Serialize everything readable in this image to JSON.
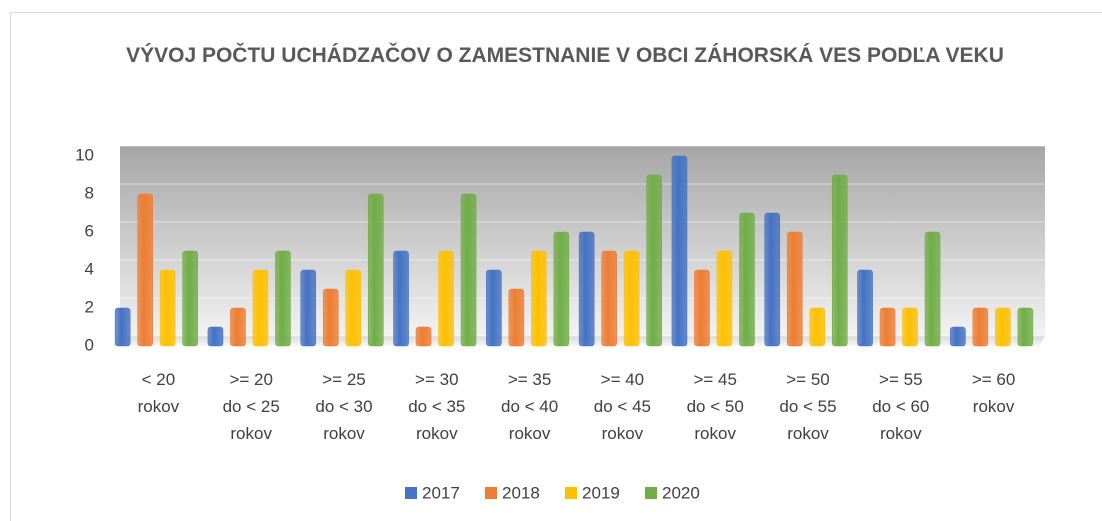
{
  "chart_data": {
    "type": "bar3d",
    "title": "VÝVOJ POČTU UCHÁDZAČOV O ZAMESTNANIE V OBCI ZÁHORSKÁ VES PODĽA VEKU",
    "categories": [
      "< 20 rokov",
      ">= 20 do < 25 rokov",
      ">= 25 do < 30 rokov",
      ">= 30 do < 35 rokov",
      ">= 35 do < 40 rokov",
      ">= 40 do < 45 rokov",
      ">= 45 do < 50 rokov",
      ">= 50 do < 55 rokov",
      ">= 55 do < 60 rokov",
      ">= 60 rokov"
    ],
    "series": [
      {
        "name": "2017",
        "color": "#4472c4",
        "values": [
          2,
          1,
          4,
          5,
          4,
          6,
          10,
          7,
          4,
          1
        ]
      },
      {
        "name": "2018",
        "color": "#ed7d31",
        "values": [
          8,
          2,
          3,
          1,
          3,
          5,
          4,
          6,
          2,
          2
        ]
      },
      {
        "name": "2019",
        "color": "#ffc000",
        "values": [
          4,
          4,
          4,
          5,
          5,
          5,
          5,
          2,
          2,
          2
        ]
      },
      {
        "name": "2020",
        "color": "#70ad47",
        "values": [
          5,
          5,
          8,
          8,
          6,
          9,
          7,
          9,
          6,
          2
        ]
      }
    ],
    "ylim": [
      0,
      10
    ],
    "yticks": [
      0,
      2,
      4,
      6,
      8,
      10
    ],
    "grid": true,
    "legend": "bottom"
  }
}
